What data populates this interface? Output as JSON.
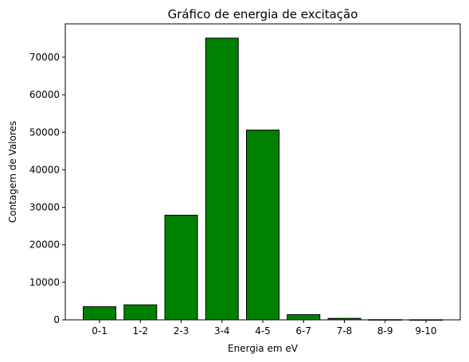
{
  "chart_data": {
    "type": "bar",
    "title": "Gráfico de energia de excitação",
    "xlabel": "Energia em eV",
    "ylabel": "Contagem de Valores",
    "categories": [
      "0-1",
      "1-2",
      "2-3",
      "3-4",
      "4-5",
      "6-7",
      "7-8",
      "8-9",
      "9-10"
    ],
    "values": [
      3500,
      4000,
      27900,
      75100,
      50600,
      1400,
      400,
      50,
      20
    ],
    "ylim": [
      0,
      78900
    ],
    "yticks": [
      0,
      10000,
      20000,
      30000,
      40000,
      50000,
      60000,
      70000
    ],
    "bar_color": "#008000",
    "edge_color": "#000000",
    "grid": false
  }
}
